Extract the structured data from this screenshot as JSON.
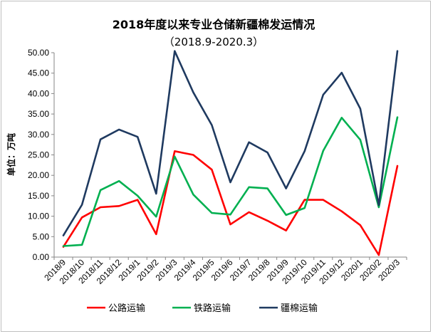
{
  "chart_data": {
    "type": "line",
    "title": "2018年度以来专业仓储新疆棉发运情况",
    "subtitle": "（2018.9-2020.3）",
    "ylabel": "单位：万吨",
    "xlabel": "",
    "ylim": [
      0,
      50
    ],
    "yticks": [
      "0.00",
      "5.00",
      "10.00",
      "15.00",
      "20.00",
      "25.00",
      "30.00",
      "35.00",
      "40.00",
      "45.00",
      "50.00"
    ],
    "categories": [
      "2018/9",
      "2018/10",
      "2018/11",
      "2018/12",
      "2019/1",
      "2019/2",
      "2019/3",
      "2019/4",
      "2019/5",
      "2019/6",
      "2019/7",
      "2019/8",
      "2019/9",
      "2019/10",
      "2019/11",
      "2019/12",
      "2020/1",
      "2020/2",
      "2020/3"
    ],
    "series": [
      {
        "name": "公路运输",
        "color": "#ff0000",
        "values": [
          2.5,
          9.7,
          12.2,
          12.5,
          14.0,
          5.6,
          25.9,
          25.0,
          21.4,
          8.0,
          11.0,
          8.9,
          6.5,
          14.0,
          14.0,
          11.2,
          7.8,
          0.5,
          22.3
        ]
      },
      {
        "name": "铁路运输",
        "color": "#00b050",
        "values": [
          2.7,
          3.0,
          16.4,
          18.6,
          15.0,
          9.9,
          24.6,
          15.3,
          10.8,
          10.4,
          17.1,
          16.8,
          10.3,
          12.0,
          26.0,
          34.1,
          28.7,
          12.2,
          34.2
        ]
      },
      {
        "name": "疆棉运输",
        "color": "#1f3a60",
        "values": [
          5.3,
          12.8,
          28.8,
          31.2,
          29.4,
          15.5,
          50.4,
          40.3,
          32.3,
          18.3,
          28.1,
          25.6,
          16.8,
          25.9,
          39.7,
          45.1,
          36.3,
          12.7,
          50.6
        ]
      }
    ],
    "grid": false,
    "legend": "bottom"
  }
}
